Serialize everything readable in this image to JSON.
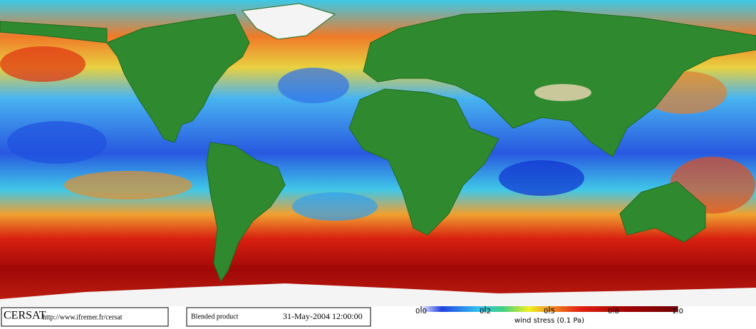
{
  "footer": {
    "brand": "CERSAT",
    "url": "http://www.ifremer.fr/cersat",
    "product": "Blended product",
    "timestamp": "31-May-2004 12:00:00"
  },
  "colorbar": {
    "label": "wind stress (0.1 Pa)",
    "ticks": [
      {
        "value": 0,
        "label": "0.0"
      },
      0.2,
      0.5,
      0.8,
      {
        "value": 1,
        "label": "1.0"
      }
    ]
  }
}
